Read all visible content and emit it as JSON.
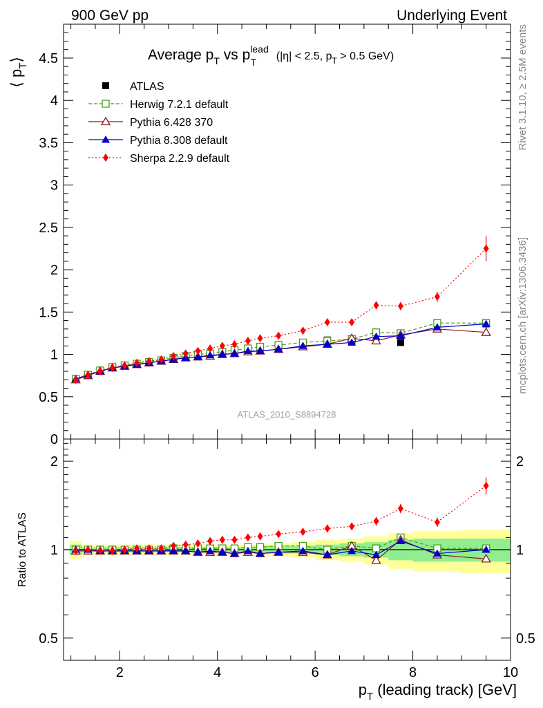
{
  "header": {
    "left": "900 GeV pp",
    "right": "Underlying Event"
  },
  "title": {
    "main": "Average p",
    "sub1": "T",
    "vs": " vs p",
    "sup": "lead",
    "sub2": "T",
    "cuts_a": " (|η| < 2.5, p",
    "cuts_sub": "T",
    "cuts_b": " > 0.5 GeV)"
  },
  "ylabel_top": {
    "open": "⟨ p",
    "sub": "T",
    "close": "⟩"
  },
  "ylabel_bottom": "Ratio to ATLAS",
  "xlabel": {
    "p": "p",
    "sub": "T",
    "rest": " (leading track) [GeV]"
  },
  "side_text": {
    "rivet": "Rivet 3.1.10, ≥ 2.5M events",
    "mcplots": "mcplots.cern.ch [arXiv:1306.3436]"
  },
  "watermark": "ATLAS_2010_S8894728",
  "chart_data": [
    {
      "type": "line",
      "xlim": [
        0.85,
        10.0
      ],
      "ylim": [
        0,
        4.9
      ],
      "x_ticks": [
        "2",
        "4",
        "6",
        "8",
        "10"
      ],
      "x_tick_values": [
        2,
        4,
        6,
        8,
        10
      ],
      "y_ticks": [
        "0",
        "0.5",
        "1",
        "1.5",
        "2",
        "2.5",
        "3",
        "3.5",
        "4",
        "4.5"
      ],
      "y_tick_values": [
        0,
        0.5,
        1,
        1.5,
        2,
        2.5,
        3,
        3.5,
        4,
        4.5
      ],
      "x": [
        1.1,
        1.35,
        1.6,
        1.85,
        2.1,
        2.35,
        2.6,
        2.85,
        3.1,
        3.35,
        3.6,
        3.85,
        4.1,
        4.35,
        4.625,
        4.875,
        5.25,
        5.75,
        6.25,
        6.75,
        7.25,
        7.75,
        8.5,
        9.5
      ],
      "series": [
        {
          "name": "ATLAS",
          "color": "#000000",
          "marker": "square-filled",
          "values": [
            0.71,
            0.76,
            0.81,
            0.85,
            0.87,
            0.89,
            0.91,
            0.93,
            0.95,
            0.97,
            0.99,
            1.0,
            1.02,
            1.04,
            1.05,
            1.07,
            1.08,
            1.11,
            1.17,
            1.15,
            1.26,
            1.14,
            1.36,
            1.36
          ],
          "error": [
            0.01,
            0.01,
            0.01,
            0.01,
            0.01,
            0.01,
            0.01,
            0.01,
            0.01,
            0.01,
            0.01,
            0.01,
            0.01,
            0.01,
            0.01,
            0.01,
            0.02,
            0.02,
            0.03,
            0.03,
            0.04,
            0.04,
            0.04,
            0.05
          ]
        },
        {
          "name": "Herwig 7.2.1 default",
          "color": "#4a9a1e",
          "marker": "square-open",
          "dash": "5,3",
          "values": [
            0.71,
            0.76,
            0.81,
            0.85,
            0.87,
            0.89,
            0.91,
            0.93,
            0.96,
            0.98,
            1.0,
            1.01,
            1.03,
            1.05,
            1.07,
            1.09,
            1.11,
            1.14,
            1.16,
            1.18,
            1.26,
            1.25,
            1.37,
            1.37
          ],
          "error": [
            0.005,
            0.005,
            0.005,
            0.005,
            0.005,
            0.005,
            0.005,
            0.005,
            0.005,
            0.005,
            0.005,
            0.005,
            0.005,
            0.005,
            0.005,
            0.005,
            0.01,
            0.01,
            0.01,
            0.01,
            0.015,
            0.015,
            0.02,
            0.02
          ]
        },
        {
          "name": "Pythia 6.428 370",
          "color": "#8b1a1a",
          "marker": "triangle-open",
          "values": [
            0.7,
            0.75,
            0.8,
            0.84,
            0.86,
            0.88,
            0.9,
            0.92,
            0.94,
            0.96,
            0.97,
            0.98,
            1.0,
            1.01,
            1.03,
            1.04,
            1.06,
            1.09,
            1.12,
            1.19,
            1.16,
            1.23,
            1.3,
            1.26
          ],
          "error": [
            0.005,
            0.005,
            0.005,
            0.005,
            0.005,
            0.005,
            0.005,
            0.005,
            0.005,
            0.005,
            0.005,
            0.005,
            0.005,
            0.005,
            0.005,
            0.005,
            0.01,
            0.01,
            0.01,
            0.01,
            0.015,
            0.015,
            0.02,
            0.02
          ]
        },
        {
          "name": "Pythia 8.308 default",
          "color": "#0000cc",
          "marker": "triangle-filled",
          "values": [
            0.71,
            0.76,
            0.8,
            0.84,
            0.86,
            0.88,
            0.9,
            0.92,
            0.94,
            0.96,
            0.97,
            0.99,
            1.0,
            1.01,
            1.04,
            1.04,
            1.06,
            1.1,
            1.12,
            1.14,
            1.21,
            1.22,
            1.32,
            1.36
          ],
          "error": [
            0.005,
            0.005,
            0.005,
            0.005,
            0.005,
            0.005,
            0.005,
            0.005,
            0.005,
            0.005,
            0.005,
            0.005,
            0.005,
            0.005,
            0.005,
            0.005,
            0.01,
            0.01,
            0.01,
            0.01,
            0.015,
            0.015,
            0.02,
            0.02
          ]
        },
        {
          "name": "Sherpa 2.2.9 default",
          "color": "#ff0000",
          "marker": "diamond-filled",
          "dash": "2,3",
          "values": [
            0.7,
            0.76,
            0.8,
            0.84,
            0.87,
            0.9,
            0.92,
            0.94,
            0.98,
            1.01,
            1.04,
            1.07,
            1.1,
            1.12,
            1.16,
            1.19,
            1.22,
            1.28,
            1.38,
            1.38,
            1.58,
            1.57,
            1.68,
            2.25
          ],
          "error": [
            0.01,
            0.01,
            0.01,
            0.01,
            0.01,
            0.01,
            0.01,
            0.01,
            0.01,
            0.01,
            0.01,
            0.01,
            0.015,
            0.015,
            0.02,
            0.02,
            0.03,
            0.03,
            0.04,
            0.04,
            0.05,
            0.05,
            0.06,
            0.15
          ]
        }
      ]
    },
    {
      "type": "line",
      "scale": "log",
      "xlim": [
        0.85,
        10.0
      ],
      "ylim": [
        0.42,
        2.38
      ],
      "y_ticks": [
        "0.5",
        "1",
        "2"
      ],
      "y_tick_values": [
        0.5,
        1,
        2
      ],
      "x": [
        1.1,
        1.35,
        1.6,
        1.85,
        2.1,
        2.35,
        2.6,
        2.85,
        3.1,
        3.35,
        3.6,
        3.85,
        4.1,
        4.35,
        4.625,
        4.875,
        5.25,
        5.75,
        6.25,
        6.75,
        7.25,
        7.75,
        8.5,
        9.5
      ],
      "bin_edges": [
        0.975,
        1.225,
        1.475,
        1.725,
        1.975,
        2.225,
        2.475,
        2.725,
        2.975,
        3.225,
        3.475,
        3.725,
        3.975,
        4.225,
        4.475,
        4.75,
        5.0,
        5.5,
        6.0,
        6.5,
        7.0,
        7.5,
        8.0,
        9.0,
        10.0
      ],
      "band_stat": [
        0.04,
        0.02,
        0.02,
        0.02,
        0.02,
        0.02,
        0.02,
        0.02,
        0.02,
        0.02,
        0.02,
        0.02,
        0.02,
        0.02,
        0.02,
        0.02,
        0.03,
        0.03,
        0.04,
        0.05,
        0.06,
        0.08,
        0.09,
        0.09
      ],
      "band_total": [
        0.07,
        0.04,
        0.04,
        0.04,
        0.04,
        0.04,
        0.04,
        0.04,
        0.04,
        0.04,
        0.04,
        0.04,
        0.04,
        0.04,
        0.04,
        0.04,
        0.05,
        0.06,
        0.08,
        0.09,
        0.11,
        0.14,
        0.16,
        0.17
      ],
      "series": [
        {
          "name": "Herwig 7.2.1 default",
          "color": "#4a9a1e",
          "marker": "square-open",
          "dash": "5,3",
          "values": [
            1.0,
            1.0,
            1.0,
            1.0,
            1.0,
            1.0,
            1.0,
            1.0,
            1.01,
            1.01,
            1.01,
            1.01,
            1.01,
            1.01,
            1.02,
            1.02,
            1.03,
            1.03,
            1.0,
            1.03,
            1.01,
            1.1,
            1.01,
            1.01
          ]
        },
        {
          "name": "Pythia 6.428 370",
          "color": "#8b1a1a",
          "marker": "triangle-open",
          "values": [
            0.99,
            0.99,
            0.99,
            0.99,
            0.99,
            0.99,
            0.99,
            0.99,
            0.99,
            0.99,
            0.98,
            0.98,
            0.98,
            0.97,
            0.98,
            0.97,
            0.98,
            0.98,
            0.96,
            1.03,
            0.92,
            1.08,
            0.96,
            0.93
          ]
        },
        {
          "name": "Pythia 8.308 default",
          "color": "#0000cc",
          "marker": "triangle-filled",
          "values": [
            1.0,
            1.0,
            0.99,
            0.99,
            0.99,
            0.99,
            0.99,
            0.99,
            0.99,
            0.99,
            0.98,
            0.99,
            0.98,
            0.97,
            0.99,
            0.97,
            0.98,
            0.99,
            0.96,
            0.99,
            0.96,
            1.07,
            0.97,
            1.0
          ]
        },
        {
          "name": "Sherpa 2.2.9 default",
          "color": "#ff0000",
          "marker": "diamond-filled",
          "dash": "2,3",
          "values": [
            0.99,
            1.0,
            0.99,
            0.99,
            1.0,
            1.01,
            1.01,
            1.01,
            1.03,
            1.04,
            1.05,
            1.07,
            1.08,
            1.08,
            1.1,
            1.11,
            1.13,
            1.15,
            1.18,
            1.2,
            1.25,
            1.38,
            1.24,
            1.65
          ],
          "error": [
            0.01,
            0.01,
            0.01,
            0.01,
            0.01,
            0.01,
            0.01,
            0.01,
            0.01,
            0.01,
            0.01,
            0.01,
            0.015,
            0.015,
            0.02,
            0.02,
            0.025,
            0.03,
            0.03,
            0.035,
            0.045,
            0.05,
            0.045,
            0.11
          ]
        }
      ]
    }
  ]
}
